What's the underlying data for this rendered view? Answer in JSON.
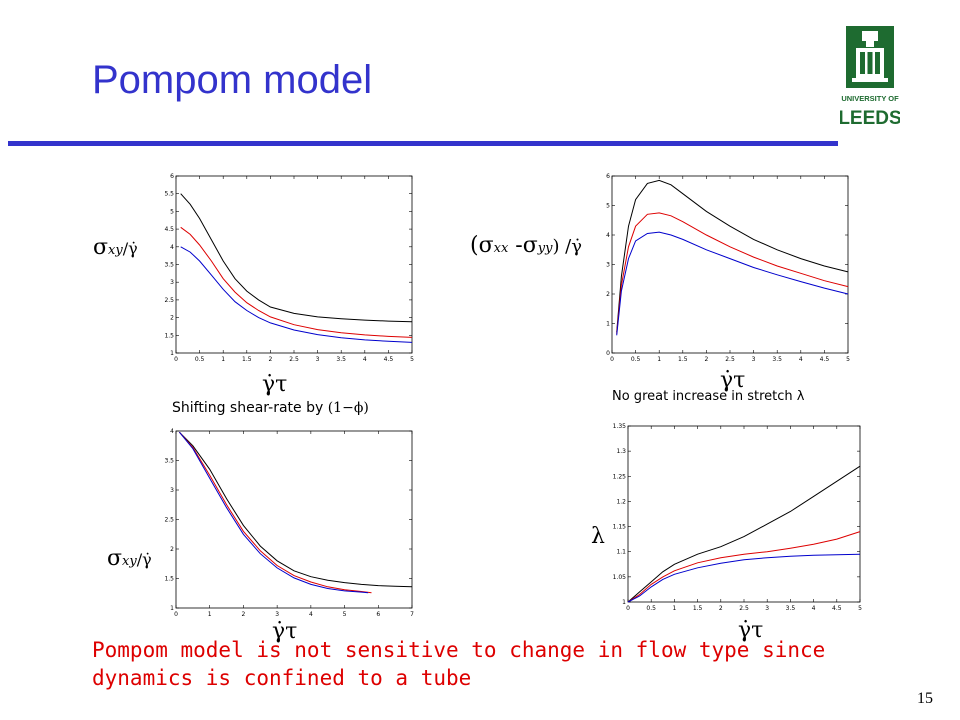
{
  "slide": {
    "title": "Pompom model",
    "page_number": "15",
    "logo_text_top": "UNIVERSITY OF",
    "logo_text_bottom": "LEEDS",
    "caption_shift_prefix": "Shifting shear-rate by",
    "caption_shift_math": "(1−ϕ)",
    "caption_stretch": "No great increase in stretch λ",
    "conclusion": "Pompom model is not sensitive to change in flow type since dynamics is confined to a tube",
    "labels": {
      "sigma_xy": "σ",
      "sigma_xy_sub": "xy",
      "per_gamma_dot": "/γ̇",
      "normal_stress_open": "(σ",
      "normal_stress_xx": "xx",
      "normal_stress_minus": " -σ",
      "normal_stress_yy": "yy",
      "normal_stress_close": ") /γ̇",
      "lambda": "λ",
      "gamma_dot_tau": "γ̇τ"
    }
  },
  "chart_data": [
    {
      "type": "line",
      "panel": "top-left",
      "xlim": [
        0,
        5
      ],
      "ylim": [
        1,
        6
      ],
      "xticks": [
        0,
        0.5,
        1,
        1.5,
        2,
        2.5,
        3,
        3.5,
        4,
        4.5,
        5
      ],
      "yticks": [
        1,
        1.5,
        2,
        2.5,
        3,
        3.5,
        4,
        4.5,
        5,
        5.5,
        6
      ],
      "series": [
        {
          "color": "#000000",
          "x": [
            0.1,
            0.3,
            0.5,
            0.75,
            1,
            1.25,
            1.5,
            1.75,
            2,
            2.5,
            3,
            3.5,
            4,
            4.5,
            5
          ],
          "y": [
            5.5,
            5.2,
            4.8,
            4.2,
            3.6,
            3.1,
            2.75,
            2.5,
            2.3,
            2.12,
            2.02,
            1.97,
            1.93,
            1.9,
            1.88
          ]
        },
        {
          "color": "#dd0000",
          "x": [
            0.1,
            0.3,
            0.5,
            0.75,
            1,
            1.25,
            1.5,
            1.75,
            2,
            2.5,
            3,
            3.5,
            4,
            4.5,
            5
          ],
          "y": [
            4.55,
            4.35,
            4.05,
            3.6,
            3.1,
            2.72,
            2.42,
            2.2,
            2.02,
            1.8,
            1.66,
            1.57,
            1.51,
            1.47,
            1.44
          ]
        },
        {
          "color": "#0000cc",
          "x": [
            0.1,
            0.3,
            0.5,
            0.75,
            1,
            1.25,
            1.5,
            1.75,
            2,
            2.5,
            3,
            3.5,
            4,
            4.5,
            5
          ],
          "y": [
            4.0,
            3.85,
            3.6,
            3.2,
            2.8,
            2.45,
            2.2,
            2.0,
            1.85,
            1.65,
            1.52,
            1.43,
            1.37,
            1.33,
            1.3
          ]
        }
      ]
    },
    {
      "type": "line",
      "panel": "top-right",
      "xlim": [
        0,
        5
      ],
      "ylim": [
        0,
        6
      ],
      "xticks": [
        0,
        0.5,
        1,
        1.5,
        2,
        2.5,
        3,
        3.5,
        4,
        4.5,
        5
      ],
      "yticks": [
        0,
        1,
        2,
        3,
        4,
        5,
        6
      ],
      "series": [
        {
          "color": "#000000",
          "x": [
            0.1,
            0.2,
            0.35,
            0.5,
            0.75,
            1,
            1.25,
            1.5,
            2,
            2.5,
            3,
            3.5,
            4,
            4.5,
            5
          ],
          "y": [
            0.7,
            2.6,
            4.3,
            5.2,
            5.75,
            5.85,
            5.7,
            5.4,
            4.8,
            4.3,
            3.85,
            3.5,
            3.2,
            2.95,
            2.75
          ]
        },
        {
          "color": "#dd0000",
          "x": [
            0.1,
            0.2,
            0.35,
            0.5,
            0.75,
            1,
            1.25,
            1.5,
            2,
            2.5,
            3,
            3.5,
            4,
            4.5,
            5
          ],
          "y": [
            0.65,
            2.3,
            3.6,
            4.3,
            4.7,
            4.75,
            4.65,
            4.45,
            4.0,
            3.6,
            3.25,
            2.95,
            2.7,
            2.45,
            2.25
          ]
        },
        {
          "color": "#0000cc",
          "x": [
            0.1,
            0.2,
            0.35,
            0.5,
            0.75,
            1,
            1.25,
            1.5,
            2,
            2.5,
            3,
            3.5,
            4,
            4.5,
            5
          ],
          "y": [
            0.6,
            2.1,
            3.2,
            3.8,
            4.05,
            4.1,
            4.0,
            3.85,
            3.5,
            3.2,
            2.9,
            2.65,
            2.42,
            2.2,
            2.0
          ]
        }
      ]
    },
    {
      "type": "line",
      "panel": "bottom-left",
      "xlim": [
        0,
        7
      ],
      "ylim": [
        1,
        4
      ],
      "xticks": [
        0,
        1,
        2,
        3,
        4,
        5,
        6,
        7
      ],
      "yticks": [
        1,
        1.5,
        2,
        2.5,
        3,
        3.5,
        4
      ],
      "series": [
        {
          "color": "#000000",
          "x": [
            0.1,
            0.5,
            1,
            1.5,
            2,
            2.5,
            3,
            3.5,
            4,
            4.5,
            5,
            5.5,
            6,
            6.5,
            7
          ],
          "y": [
            3.98,
            3.75,
            3.35,
            2.85,
            2.4,
            2.05,
            1.8,
            1.63,
            1.53,
            1.47,
            1.43,
            1.4,
            1.38,
            1.37,
            1.36
          ]
        },
        {
          "color": "#dd0000",
          "x": [
            0.1,
            0.5,
            1,
            1.5,
            2,
            2.5,
            3,
            3.5,
            4,
            4.5,
            5,
            5.5,
            5.8
          ],
          "y": [
            3.98,
            3.72,
            3.25,
            2.75,
            2.3,
            1.97,
            1.72,
            1.55,
            1.44,
            1.36,
            1.31,
            1.28,
            1.26
          ]
        },
        {
          "color": "#0000cc",
          "x": [
            0.1,
            0.5,
            1,
            1.5,
            2,
            2.5,
            3,
            3.5,
            4,
            4.5,
            5,
            5.5,
            5.7
          ],
          "y": [
            3.98,
            3.7,
            3.2,
            2.7,
            2.25,
            1.92,
            1.68,
            1.51,
            1.4,
            1.33,
            1.29,
            1.27,
            1.26
          ]
        }
      ]
    },
    {
      "type": "line",
      "panel": "bottom-right",
      "xlim": [
        0,
        5
      ],
      "ylim": [
        1,
        1.35
      ],
      "xticks": [
        0,
        0.5,
        1,
        1.5,
        2,
        2.5,
        3,
        3.5,
        4,
        4.5,
        5
      ],
      "yticks": [
        1,
        1.05,
        1.1,
        1.15,
        1.2,
        1.25,
        1.3,
        1.35
      ],
      "series": [
        {
          "color": "#000000",
          "x": [
            0,
            0.25,
            0.5,
            0.75,
            1,
            1.5,
            2,
            2.5,
            3,
            3.5,
            4,
            4.5,
            5
          ],
          "y": [
            1.0,
            1.02,
            1.04,
            1.06,
            1.075,
            1.095,
            1.11,
            1.13,
            1.155,
            1.18,
            1.21,
            1.24,
            1.27
          ]
        },
        {
          "color": "#dd0000",
          "x": [
            0,
            0.25,
            0.5,
            0.75,
            1,
            1.5,
            2,
            2.5,
            3,
            3.5,
            4,
            4.5,
            5
          ],
          "y": [
            1.0,
            1.015,
            1.035,
            1.05,
            1.062,
            1.078,
            1.088,
            1.095,
            1.1,
            1.107,
            1.115,
            1.125,
            1.14
          ]
        },
        {
          "color": "#0000cc",
          "x": [
            0,
            0.25,
            0.5,
            0.75,
            1,
            1.5,
            2,
            2.5,
            3,
            3.5,
            4,
            4.5,
            5
          ],
          "y": [
            1.0,
            1.012,
            1.03,
            1.045,
            1.055,
            1.068,
            1.077,
            1.084,
            1.088,
            1.091,
            1.093,
            1.094,
            1.095
          ]
        }
      ]
    }
  ]
}
